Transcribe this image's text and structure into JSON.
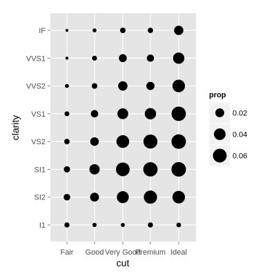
{
  "chart_data": {
    "type": "scatter",
    "xlabel": "cut",
    "ylabel": "clarity",
    "x_categories": [
      "Fair",
      "Good",
      "Very Good",
      "Premium",
      "Ideal"
    ],
    "y_categories": [
      "I1",
      "SI2",
      "SI1",
      "VS2",
      "VS1",
      "VVS2",
      "VVS1",
      "IF"
    ],
    "size_variable": "prop",
    "legend": {
      "title": "prop",
      "position": "right",
      "entries": [
        {
          "label": "0.02",
          "value": 0.02
        },
        {
          "label": "0.04",
          "value": 0.04
        },
        {
          "label": "0.06",
          "value": 0.06
        }
      ]
    },
    "size_range": [
      0.0,
      0.068
    ],
    "points": [
      {
        "cut": "Fair",
        "clarity": "I1",
        "prop": 0.0039
      },
      {
        "cut": "Fair",
        "clarity": "SI2",
        "prop": 0.0086
      },
      {
        "cut": "Fair",
        "clarity": "SI1",
        "prop": 0.0076
      },
      {
        "cut": "Fair",
        "clarity": "VS2",
        "prop": 0.0048
      },
      {
        "cut": "Fair",
        "clarity": "VS1",
        "prop": 0.0032
      },
      {
        "cut": "Fair",
        "clarity": "VVS2",
        "prop": 0.0013
      },
      {
        "cut": "Fair",
        "clarity": "VVS1",
        "prop": 0.0003
      },
      {
        "cut": "Fair",
        "clarity": "IF",
        "prop": 0.0002
      },
      {
        "cut": "Good",
        "clarity": "I1",
        "prop": 0.0019
      },
      {
        "cut": "Good",
        "clarity": "SI2",
        "prop": 0.0202
      },
      {
        "cut": "Good",
        "clarity": "SI1",
        "prop": 0.029
      },
      {
        "cut": "Good",
        "clarity": "VS2",
        "prop": 0.0181
      },
      {
        "cut": "Good",
        "clarity": "VS1",
        "prop": 0.012
      },
      {
        "cut": "Good",
        "clarity": "VVS2",
        "prop": 0.0052
      },
      {
        "cut": "Good",
        "clarity": "VVS1",
        "prop": 0.0034
      },
      {
        "cut": "Good",
        "clarity": "IF",
        "prop": 0.0013
      },
      {
        "cut": "Very Good",
        "clarity": "I1",
        "prop": 0.0015
      },
      {
        "cut": "Very Good",
        "clarity": "SI2",
        "prop": 0.0427
      },
      {
        "cut": "Very Good",
        "clarity": "SI1",
        "prop": 0.0592
      },
      {
        "cut": "Very Good",
        "clarity": "VS2",
        "prop": 0.0497
      },
      {
        "cut": "Very Good",
        "clarity": "VS1",
        "prop": 0.0332
      },
      {
        "cut": "Very Good",
        "clarity": "VVS2",
        "prop": 0.0229
      },
      {
        "cut": "Very Good",
        "clarity": "VVS1",
        "prop": 0.0146
      },
      {
        "cut": "Very Good",
        "clarity": "IF",
        "prop": 0.0049
      },
      {
        "cut": "Premium",
        "clarity": "I1",
        "prop": 0.0038
      },
      {
        "cut": "Premium",
        "clarity": "SI2",
        "prop": 0.0546
      },
      {
        "cut": "Premium",
        "clarity": "SI1",
        "prop": 0.066
      },
      {
        "cut": "Premium",
        "clarity": "VS2",
        "prop": 0.0627
      },
      {
        "cut": "Premium",
        "clarity": "VS1",
        "prop": 0.0374
      },
      {
        "cut": "Premium",
        "clarity": "VVS2",
        "prop": 0.0161
      },
      {
        "cut": "Premium",
        "clarity": "VVS1",
        "prop": 0.0116
      },
      {
        "cut": "Premium",
        "clarity": "IF",
        "prop": 0.0043
      },
      {
        "cut": "Ideal",
        "clarity": "I1",
        "prop": 0.0027
      },
      {
        "cut": "Ideal",
        "clarity": "SI2",
        "prop": 0.0482
      },
      {
        "cut": "Ideal",
        "clarity": "SI1",
        "prop": 0.0799
      },
      {
        "cut": "Ideal",
        "clarity": "VS2",
        "prop": 0.0943
      },
      {
        "cut": "Ideal",
        "clarity": "VS1",
        "prop": 0.0663
      },
      {
        "cut": "Ideal",
        "clarity": "VVS2",
        "prop": 0.0481
      },
      {
        "cut": "Ideal",
        "clarity": "VVS1",
        "prop": 0.0375
      },
      {
        "cut": "Ideal",
        "clarity": "IF",
        "prop": 0.0226
      }
    ],
    "grid": true,
    "colors": {
      "panel": "#e5e5e5",
      "grid": "#ffffff",
      "point": "#000000"
    }
  }
}
